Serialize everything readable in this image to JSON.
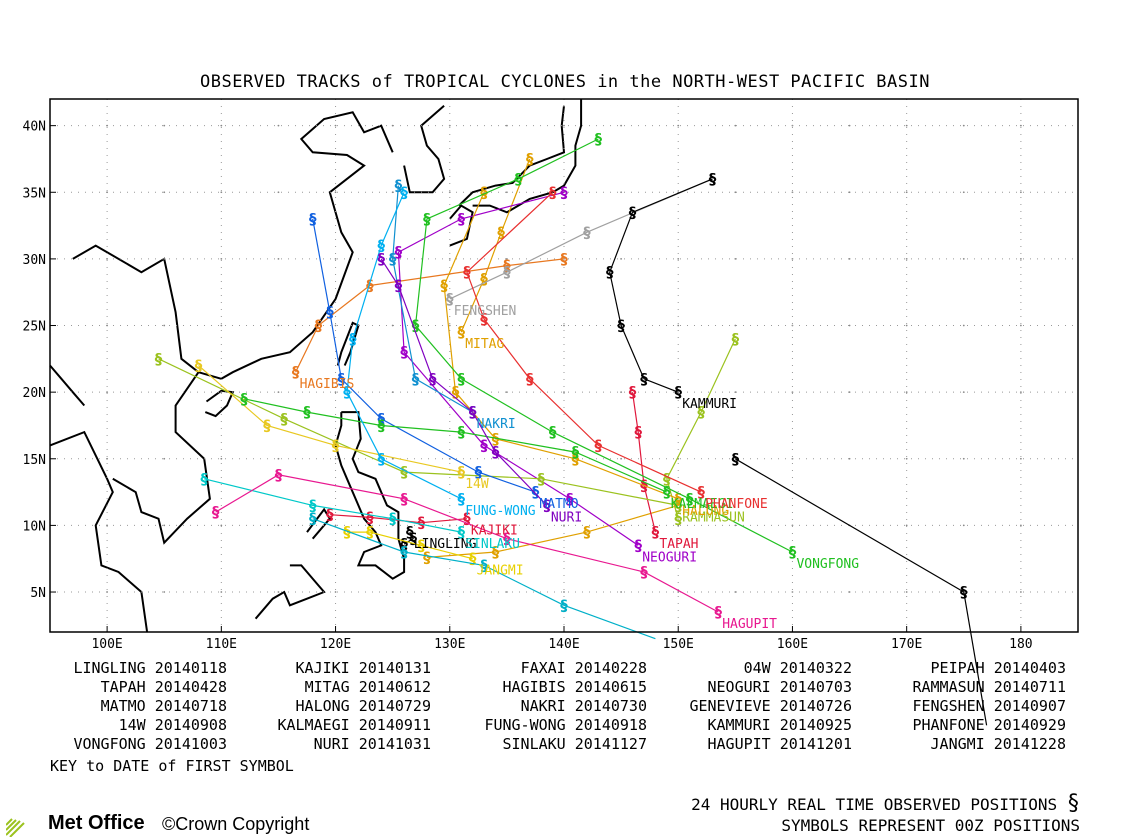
{
  "title": "OBSERVED TRACKS of TROPICAL CYCLONES in the NORTH-WEST PACIFIC BASIN",
  "axes": {
    "x_ticks": [
      "100E",
      "110E",
      "120E",
      "130E",
      "140E",
      "150E",
      "160E",
      "170E",
      "180"
    ],
    "y_ticks": [
      "40N",
      "35N",
      "30N",
      "25N",
      "20N",
      "15N",
      "10N",
      "5N"
    ],
    "lon_range": [
      95,
      185
    ],
    "lat_range": [
      2,
      42
    ]
  },
  "legend": [
    [
      "LINGLING 20140118",
      "KAJIKI 20140131",
      "FAXAI 20140228",
      "04W 20140322",
      "PEIPAH 20140403"
    ],
    [
      "TAPAH 20140428",
      "MITAG 20140612",
      "HAGIBIS 20140615",
      "NEOGURI 20140703",
      "RAMMASUN 20140711"
    ],
    [
      "MATMO 20140718",
      "HALONG 20140729",
      "NAKRI 20140730",
      "GENEVIEVE 20140726",
      "FENGSHEN 20140907"
    ],
    [
      "14W 20140908",
      "KALMAEGI 20140911",
      "FUNG-WONG 20140918",
      "KAMMURI 20140925",
      "PHANFONE 20140929"
    ],
    [
      "VONGFONG 20141003",
      "NURI 20141031",
      "SINLAKU 20141127",
      "HAGUPIT 20141201",
      "JANGMI 20141228"
    ]
  ],
  "key_text": "KEY to DATE of FIRST SYMBOL",
  "footer": {
    "line1": "24 HOURLY REAL TIME OBSERVED POSITIONS",
    "line2": "SYMBOLS REPRESENT 00Z POSITIONS",
    "brand": "Met Office",
    "copyright": "©Crown Copyright"
  },
  "symbol_glyph": "§",
  "storms": [
    {
      "name": "LINGLING",
      "color": "#000000",
      "label": "LINGLING",
      "track": [
        [
          126.5,
          9.5
        ],
        [
          126.8,
          9.0
        ],
        [
          126.0,
          8.6
        ]
      ]
    },
    {
      "name": "KAJIKI",
      "color": "#e0183c",
      "label": "KAJIKI",
      "track": [
        [
          131.5,
          10.5
        ],
        [
          127.5,
          10.2
        ],
        [
          123.0,
          10.6
        ],
        [
          119.5,
          10.8
        ]
      ]
    },
    {
      "name": "FAXAI",
      "color": "#9bc21e",
      "label": "",
      "track": [
        [
          150.0,
          10.5
        ],
        [
          149.0,
          13.5
        ],
        [
          152.0,
          18.5
        ],
        [
          155.0,
          24.0
        ]
      ]
    },
    {
      "name": "PEIPAH",
      "color": "#e0a000",
      "label": "",
      "track": [
        [
          150.0,
          11.5
        ],
        [
          142.0,
          9.5
        ],
        [
          134.0,
          8.0
        ],
        [
          128.0,
          7.6
        ]
      ]
    },
    {
      "name": "TAPAH",
      "color": "#e0183c",
      "label": "TAPAH",
      "track": [
        [
          148.0,
          9.5
        ],
        [
          147.0,
          13.0
        ],
        [
          146.5,
          17.0
        ],
        [
          146.0,
          20.0
        ]
      ]
    },
    {
      "name": "MITAG",
      "color": "#e0a000",
      "label": "MITAG",
      "track": [
        [
          131.0,
          24.5
        ],
        [
          133.0,
          28.5
        ],
        [
          134.5,
          32.0
        ],
        [
          137.0,
          37.5
        ]
      ]
    },
    {
      "name": "HAGIBIS",
      "color": "#e87820",
      "label": "HAGIBIS",
      "track": [
        [
          116.5,
          21.5
        ],
        [
          118.5,
          25.0
        ],
        [
          123.0,
          28.0
        ],
        [
          135.0,
          29.5
        ],
        [
          140.0,
          30.0
        ]
      ]
    },
    {
      "name": "NEOGURI",
      "color": "#a000c8",
      "label": "NEOGURI",
      "track": [
        [
          146.5,
          8.5
        ],
        [
          140.5,
          12.0
        ],
        [
          133.0,
          16.0
        ],
        [
          126.0,
          23.0
        ],
        [
          125.5,
          30.5
        ],
        [
          131.0,
          33.0
        ],
        [
          140.0,
          35.0
        ]
      ]
    },
    {
      "name": "RAMMASUN",
      "color": "#9bc21e",
      "label": "RAMMASUN",
      "track": [
        [
          150.0,
          11.5
        ],
        [
          138.0,
          13.5
        ],
        [
          126.0,
          14.0
        ],
        [
          115.5,
          18.0
        ],
        [
          104.5,
          22.5
        ]
      ]
    },
    {
      "name": "MATMO",
      "color": "#1060e0",
      "label": "MATMO",
      "track": [
        [
          137.5,
          12.5
        ],
        [
          132.5,
          14.0
        ],
        [
          124.0,
          18.0
        ],
        [
          120.5,
          21.0
        ],
        [
          119.5,
          26.0
        ],
        [
          118.0,
          33.0
        ]
      ]
    },
    {
      "name": "HALONG",
      "color": "#e0a000",
      "label": "HALONG",
      "track": [
        [
          150.0,
          12.0
        ],
        [
          141.0,
          15.0
        ],
        [
          134.0,
          16.5
        ],
        [
          130.5,
          20.0
        ],
        [
          129.5,
          28.0
        ],
        [
          133.0,
          35.0
        ]
      ]
    },
    {
      "name": "NAKRI",
      "color": "#1090d0",
      "label": "NAKRI",
      "track": [
        [
          132.0,
          18.5
        ],
        [
          127.0,
          21.0
        ],
        [
          125.0,
          30.0
        ],
        [
          125.5,
          35.5
        ]
      ]
    },
    {
      "name": "GENEVIEVE",
      "color": "#000000",
      "label": "",
      "track": [
        [
          177.0,
          -5.0
        ],
        [
          175.0,
          5.0
        ],
        [
          155.0,
          15.0
        ]
      ]
    },
    {
      "name": "FENGSHEN",
      "color": "#a0a0a0",
      "label": "FENGSHEN",
      "track": [
        [
          130.0,
          27.0
        ],
        [
          135.0,
          29.0
        ],
        [
          142.0,
          32.0
        ],
        [
          153.0,
          36.0
        ]
      ]
    },
    {
      "name": "14W",
      "color": "#e8c820",
      "label": "14W",
      "track": [
        [
          131.0,
          14.0
        ],
        [
          120.0,
          16.0
        ],
        [
          114.0,
          17.5
        ],
        [
          108.0,
          22.0
        ]
      ]
    },
    {
      "name": "KALMAEGI",
      "color": "#20c020",
      "label": "KALMAEGI",
      "track": [
        [
          149.0,
          12.5
        ],
        [
          141.0,
          15.5
        ],
        [
          131.0,
          17.0
        ],
        [
          124.0,
          17.5
        ],
        [
          117.5,
          18.5
        ],
        [
          112.0,
          19.5
        ]
      ]
    },
    {
      "name": "FUNG-WONG",
      "color": "#00b0f0",
      "label": "FUNG-WONG",
      "track": [
        [
          131.0,
          12.0
        ],
        [
          124.0,
          15.0
        ],
        [
          121.0,
          20.0
        ],
        [
          121.5,
          24.0
        ],
        [
          124.0,
          31.0
        ],
        [
          126.0,
          35.0
        ]
      ]
    },
    {
      "name": "KAMMURI",
      "color": "#000000",
      "label": "KAMMURI",
      "track": [
        [
          150.0,
          20.0
        ],
        [
          147.0,
          21.0
        ],
        [
          145.0,
          25.0
        ],
        [
          144.0,
          29.0
        ],
        [
          146.0,
          33.5
        ],
        [
          153.0,
          36.0
        ]
      ]
    },
    {
      "name": "PHANFONE",
      "color": "#e83030",
      "label": "PHANFONE",
      "track": [
        [
          152.0,
          12.5
        ],
        [
          143.0,
          16.0
        ],
        [
          137.0,
          21.0
        ],
        [
          133.0,
          25.5
        ],
        [
          131.5,
          29.0
        ],
        [
          139.0,
          35.0
        ]
      ]
    },
    {
      "name": "VONGFONG",
      "color": "#20c020",
      "label": "VONGFONG",
      "track": [
        [
          160.0,
          8.0
        ],
        [
          151.0,
          12.0
        ],
        [
          139.0,
          17.0
        ],
        [
          131.0,
          21.0
        ],
        [
          127.0,
          25.0
        ],
        [
          128.0,
          33.0
        ],
        [
          136.0,
          36.0
        ],
        [
          143.0,
          39.0
        ]
      ]
    },
    {
      "name": "NURI",
      "color": "#8000c0",
      "label": "NURI",
      "track": [
        [
          138.5,
          11.5
        ],
        [
          134.0,
          15.5
        ],
        [
          132.0,
          18.5
        ],
        [
          128.5,
          21.0
        ],
        [
          125.5,
          28.0
        ],
        [
          124.0,
          30.0
        ]
      ]
    },
    {
      "name": "SINLAKU",
      "color": "#00c8c8",
      "label": "SINLAKU",
      "track": [
        [
          131.0,
          9.5
        ],
        [
          125.0,
          10.5
        ],
        [
          118.0,
          11.5
        ],
        [
          108.5,
          13.5
        ]
      ]
    },
    {
      "name": "HAGUPIT",
      "color": "#e81890",
      "label": "HAGUPIT",
      "track": [
        [
          153.5,
          3.5
        ],
        [
          147.0,
          6.5
        ],
        [
          135.0,
          9.0
        ],
        [
          126.0,
          12.0
        ],
        [
          115.0,
          13.8
        ],
        [
          109.5,
          11.0
        ]
      ]
    },
    {
      "name": "JANGMI",
      "color": "#e8d000",
      "label": "JANGMI",
      "track": [
        [
          132.0,
          7.5
        ],
        [
          127.5,
          8.5
        ],
        [
          123.0,
          9.5
        ],
        [
          121.0,
          9.5
        ]
      ]
    },
    {
      "name": "04W",
      "color": "#00b0c8",
      "label": "",
      "track": [
        [
          148.0,
          1.5
        ],
        [
          140.0,
          4.0
        ],
        [
          133.0,
          7.0
        ],
        [
          126.0,
          8.0
        ],
        [
          118.0,
          10.5
        ]
      ]
    }
  ]
}
